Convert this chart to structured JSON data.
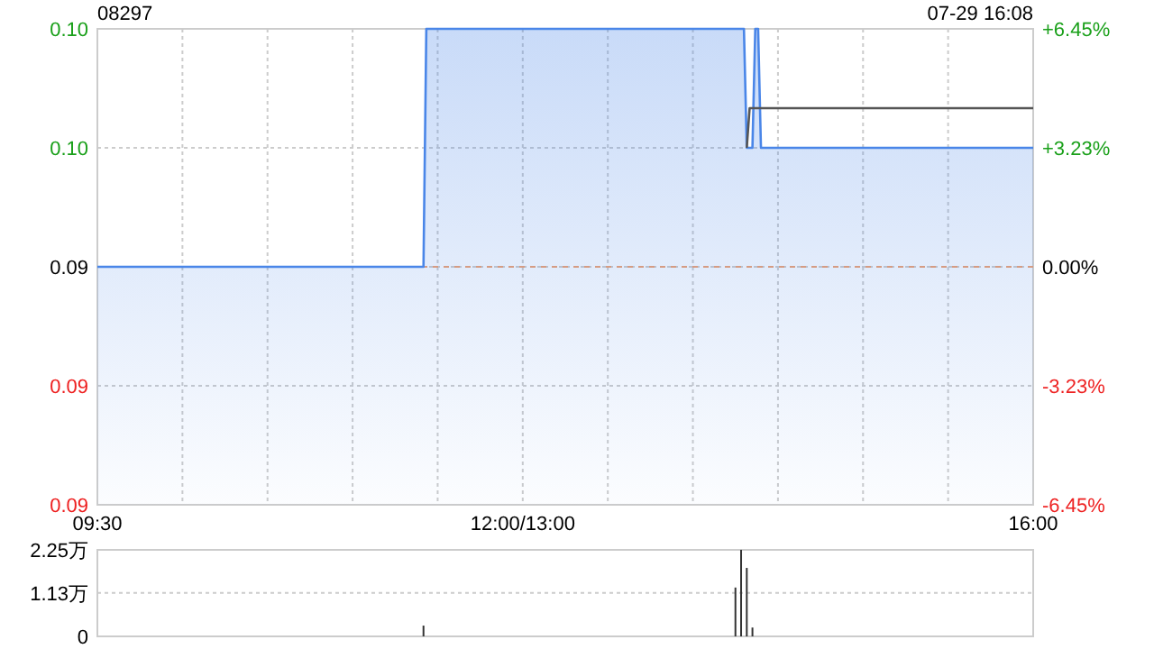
{
  "chart_data": [
    {
      "type": "line",
      "title": "08297",
      "annotations": [
        "07-29 16:08"
      ],
      "categories": [
        "09:30",
        null,
        null,
        null,
        null,
        null,
        null,
        null,
        null,
        null,
        null,
        null,
        null,
        null,
        null,
        null,
        null,
        null,
        null,
        null,
        null,
        null,
        null,
        null,
        null,
        null,
        null,
        null,
        null,
        null,
        null,
        null,
        null,
        null,
        null,
        null,
        null,
        null,
        null,
        null,
        null,
        null,
        null,
        null,
        null,
        null,
        null,
        null,
        null,
        null,
        null,
        null,
        null,
        null,
        null,
        null,
        null,
        null,
        null,
        null,
        null,
        null,
        null,
        null,
        null,
        null,
        null,
        null,
        null,
        null,
        null,
        null,
        null,
        null,
        null,
        null,
        null,
        null,
        null,
        null,
        null,
        null,
        null,
        null,
        null,
        null,
        null,
        null,
        null,
        null,
        null,
        null,
        null,
        null,
        null,
        null,
        null,
        null,
        null,
        null,
        null,
        null,
        null,
        null,
        null,
        null,
        null,
        null,
        null,
        null,
        null,
        null,
        null,
        null,
        null,
        null,
        null,
        null,
        null,
        null,
        null,
        null,
        null,
        null,
        null,
        null,
        null,
        null,
        null,
        null,
        null,
        null,
        null,
        null,
        null,
        null,
        null,
        null,
        null,
        null,
        null,
        null,
        null,
        null,
        null,
        null,
        null,
        null,
        null,
        null,
        "12:00/13:00",
        null,
        null,
        null,
        null,
        null,
        null,
        null,
        null,
        null,
        null,
        null,
        null,
        null,
        null,
        null,
        null,
        null,
        null,
        null,
        null,
        null,
        null,
        null,
        null,
        null,
        null,
        null,
        null,
        null,
        null,
        null,
        null,
        null,
        null,
        null,
        null,
        null,
        null,
        null,
        null,
        null,
        null,
        null,
        null,
        null,
        null,
        null,
        null,
        null,
        null,
        null,
        null,
        null,
        null,
        null,
        null,
        null,
        null,
        null,
        null,
        null,
        null,
        null,
        null,
        null,
        null,
        null,
        null,
        null,
        null,
        null,
        null,
        null,
        null,
        null,
        null,
        null,
        null,
        null,
        null,
        null,
        null,
        null,
        null,
        null,
        null,
        null,
        null,
        null,
        null,
        null,
        null,
        null,
        null,
        null,
        null,
        null,
        null,
        null,
        null,
        null,
        null,
        null,
        null,
        null,
        null,
        null,
        null,
        null,
        null,
        null,
        null,
        null,
        null,
        null,
        null,
        null,
        null,
        null,
        null,
        null,
        null,
        null,
        null,
        null,
        null,
        null,
        null,
        null,
        null,
        null,
        null,
        null,
        null,
        null,
        null,
        null,
        null,
        null,
        null,
        null,
        null,
        null,
        null,
        null,
        null,
        null,
        null,
        null,
        null,
        null,
        null,
        null,
        null,
        null,
        null,
        null,
        null,
        null,
        null,
        null,
        null,
        null,
        null,
        null,
        null,
        null,
        null,
        null,
        null,
        null,
        null,
        null,
        null,
        null,
        null,
        null,
        null,
        null,
        "16:00"
      ],
      "ylim": [
        0.087,
        0.099
      ],
      "yticks": [
        {
          "value": 0.087,
          "label": "0.09"
        },
        {
          "value": 0.09,
          "label": "0.09"
        },
        {
          "value": 0.093,
          "label": "0.09"
        },
        {
          "value": 0.096,
          "label": "0.10"
        },
        {
          "value": 0.099,
          "label": "0.10"
        }
      ],
      "y2lim": [
        -6.45,
        6.45
      ],
      "y2ticks": [
        {
          "value": -6.45,
          "label": "-6.45%"
        },
        {
          "value": -3.23,
          "label": "-3.23%"
        },
        {
          "value": 0,
          "label": "0.00%"
        },
        {
          "value": 3.23,
          "label": "+3.23%"
        },
        {
          "value": 6.45,
          "label": "+6.45%"
        }
      ],
      "grid": true,
      "ref_lines": [
        {
          "axis": "y",
          "value": 0.093,
          "color": "#f0a070",
          "line_style": "dashed"
        }
      ],
      "series": [
        {
          "type": "area",
          "color": "#4a86e8",
          "values": [
            0.093,
            0.093,
            0.093,
            0.093,
            0.093,
            0.093,
            0.093,
            0.093,
            0.093,
            0.093,
            0.093,
            0.093,
            0.093,
            0.093,
            0.093,
            0.093,
            0.093,
            0.093,
            0.093,
            0.093,
            0.093,
            0.093,
            0.093,
            0.093,
            0.093,
            0.093,
            0.093,
            0.093,
            0.093,
            0.093,
            0.093,
            0.093,
            0.093,
            0.093,
            0.093,
            0.093,
            0.093,
            0.093,
            0.093,
            0.093,
            0.093,
            0.093,
            0.093,
            0.093,
            0.093,
            0.093,
            0.093,
            0.093,
            0.093,
            0.093,
            0.093,
            0.093,
            0.093,
            0.093,
            0.093,
            0.093,
            0.093,
            0.093,
            0.093,
            0.093,
            0.093,
            0.093,
            0.093,
            0.093,
            0.093,
            0.093,
            0.093,
            0.093,
            0.093,
            0.093,
            0.093,
            0.093,
            0.093,
            0.093,
            0.093,
            0.093,
            0.093,
            0.093,
            0.093,
            0.093,
            0.093,
            0.093,
            0.093,
            0.093,
            0.093,
            0.093,
            0.093,
            0.093,
            0.093,
            0.093,
            0.093,
            0.093,
            0.093,
            0.093,
            0.093,
            0.093,
            0.093,
            0.093,
            0.093,
            0.093,
            0.093,
            0.093,
            0.093,
            0.093,
            0.093,
            0.093,
            0.093,
            0.093,
            0.093,
            0.093,
            0.093,
            0.093,
            0.093,
            0.093,
            0.093,
            0.093,
            0.099,
            0.099,
            0.099,
            0.099,
            0.099,
            0.099,
            0.099,
            0.099,
            0.099,
            0.099,
            0.099,
            0.099,
            0.099,
            0.099,
            0.099,
            0.099,
            0.099,
            0.099,
            0.099,
            0.099,
            0.099,
            0.099,
            0.099,
            0.099,
            0.099,
            0.099,
            0.099,
            0.099,
            0.099,
            0.099,
            0.099,
            0.099,
            0.099,
            0.099,
            0.099,
            0.099,
            0.099,
            0.099,
            0.099,
            0.099,
            0.099,
            0.099,
            0.099,
            0.099,
            0.099,
            0.099,
            0.099,
            0.099,
            0.099,
            0.099,
            0.099,
            0.099,
            0.099,
            0.099,
            0.099,
            0.099,
            0.099,
            0.099,
            0.099,
            0.099,
            0.099,
            0.099,
            0.099,
            0.099,
            0.099,
            0.099,
            0.099,
            0.099,
            0.099,
            0.099,
            0.099,
            0.099,
            0.099,
            0.099,
            0.099,
            0.099,
            0.099,
            0.099,
            0.099,
            0.099,
            0.099,
            0.099,
            0.099,
            0.099,
            0.099,
            0.099,
            0.099,
            0.099,
            0.099,
            0.099,
            0.099,
            0.099,
            0.099,
            0.099,
            0.099,
            0.099,
            0.099,
            0.099,
            0.099,
            0.099,
            0.099,
            0.099,
            0.099,
            0.099,
            0.099,
            0.099,
            0.099,
            0.099,
            0.099,
            0.099,
            0.099,
            0.099,
            0.099,
            0.096,
            0.096,
            0.096,
            0.099,
            0.099,
            0.096,
            0.096,
            0.096,
            0.096,
            0.096,
            0.096,
            0.096,
            0.096,
            0.096,
            0.096,
            0.096,
            0.096,
            0.096,
            0.096,
            0.096,
            0.096,
            0.096,
            0.096,
            0.096,
            0.096,
            0.096,
            0.096,
            0.096,
            0.096,
            0.096,
            0.096,
            0.096,
            0.096,
            0.096,
            0.096,
            0.096,
            0.096,
            0.096,
            0.096,
            0.096,
            0.096,
            0.096,
            0.096,
            0.096,
            0.096,
            0.096,
            0.096,
            0.096,
            0.096,
            0.096,
            0.096,
            0.096,
            0.096,
            0.096,
            0.096,
            0.096,
            0.096,
            0.096,
            0.096,
            0.096,
            0.096,
            0.096,
            0.096,
            0.096,
            0.096,
            0.096,
            0.096,
            0.096,
            0.096,
            0.096,
            0.096,
            0.096,
            0.096,
            0.096,
            0.096,
            0.096,
            0.096,
            0.096,
            0.096,
            0.096,
            0.096,
            0.096,
            0.096,
            0.096,
            0.096,
            0.096,
            0.096,
            0.096,
            0.096,
            0.096,
            0.096,
            0.096,
            0.096,
            0.096,
            0.096,
            0.096,
            0.096,
            0.096,
            0.096,
            0.096,
            0.096,
            0.096
          ]
        },
        {
          "type": "line",
          "color": "#555555",
          "values": [
            null,
            null,
            null,
            null,
            null,
            null,
            null,
            null,
            null,
            null,
            null,
            null,
            null,
            null,
            null,
            null,
            null,
            null,
            null,
            null,
            null,
            null,
            null,
            null,
            null,
            null,
            null,
            null,
            null,
            null,
            null,
            null,
            null,
            null,
            null,
            null,
            null,
            null,
            null,
            null,
            null,
            null,
            null,
            null,
            null,
            null,
            null,
            null,
            null,
            null,
            null,
            null,
            null,
            null,
            null,
            null,
            null,
            null,
            null,
            null,
            null,
            null,
            null,
            null,
            null,
            null,
            null,
            null,
            null,
            null,
            null,
            null,
            null,
            null,
            null,
            null,
            null,
            null,
            null,
            null,
            null,
            null,
            null,
            null,
            null,
            null,
            null,
            null,
            null,
            null,
            null,
            null,
            null,
            null,
            null,
            null,
            null,
            null,
            null,
            null,
            null,
            null,
            null,
            null,
            null,
            null,
            null,
            null,
            null,
            null,
            null,
            null,
            null,
            null,
            null,
            null,
            null,
            null,
            null,
            null,
            null,
            null,
            null,
            null,
            null,
            null,
            null,
            null,
            null,
            null,
            null,
            null,
            null,
            null,
            null,
            null,
            null,
            null,
            null,
            null,
            null,
            null,
            null,
            null,
            null,
            null,
            null,
            null,
            null,
            null,
            null,
            null,
            null,
            null,
            null,
            null,
            null,
            null,
            null,
            null,
            null,
            null,
            null,
            null,
            null,
            null,
            null,
            null,
            null,
            null,
            null,
            null,
            null,
            null,
            null,
            null,
            null,
            null,
            null,
            null,
            null,
            null,
            null,
            null,
            null,
            null,
            null,
            null,
            null,
            null,
            null,
            null,
            null,
            null,
            null,
            null,
            null,
            null,
            null,
            null,
            null,
            null,
            null,
            null,
            null,
            null,
            null,
            null,
            null,
            null,
            null,
            null,
            null,
            null,
            null,
            null,
            null,
            null,
            null,
            null,
            null,
            null,
            null,
            null,
            null,
            null,
            null,
            null,
            null,
            0.096,
            0.097,
            0.097,
            0.097,
            0.097,
            0.097,
            0.097,
            0.097,
            0.097,
            0.097,
            0.097,
            0.097,
            0.097,
            0.097,
            0.097,
            0.097,
            0.097,
            0.097,
            0.097,
            0.097,
            0.097,
            0.097,
            0.097,
            0.097,
            0.097,
            0.097,
            0.097,
            0.097,
            0.097,
            0.097,
            0.097,
            0.097,
            0.097,
            0.097,
            0.097,
            0.097,
            0.097,
            0.097,
            0.097,
            0.097,
            0.097,
            0.097,
            0.097,
            0.097,
            0.097,
            0.097,
            0.097,
            0.097,
            0.097,
            0.097,
            0.097,
            0.097,
            0.097,
            0.097,
            0.097,
            0.097,
            0.097,
            0.097,
            0.097,
            0.097,
            0.097,
            0.097,
            0.097,
            0.097,
            0.097,
            0.097,
            0.097,
            0.097,
            0.097,
            0.097,
            0.097,
            0.097,
            0.097,
            0.097,
            0.097,
            0.097,
            0.097,
            0.097,
            0.097,
            0.097,
            0.097,
            0.097,
            0.097,
            0.097,
            0.097,
            0.097,
            0.097,
            0.097,
            0.097,
            0.097,
            0.097,
            0.097,
            0.097,
            0.097,
            0.097,
            0.097,
            0.097,
            0.097,
            0.097,
            0.097,
            0.097,
            0.097
          ]
        }
      ]
    },
    {
      "type": "bar",
      "tick_labels": "y",
      "categories": [
        null,
        null,
        null,
        null,
        null,
        null,
        null,
        null,
        null,
        null,
        null,
        null,
        null,
        null,
        null,
        null,
        null,
        null,
        null,
        null,
        null,
        null,
        null,
        null,
        null,
        null,
        null,
        null,
        null,
        null,
        null,
        null,
        null,
        null,
        null,
        null,
        null,
        null,
        null,
        null,
        null,
        null,
        null,
        null,
        null,
        null,
        null,
        null,
        null,
        null,
        null,
        null,
        null,
        null,
        null,
        null,
        null,
        null,
        null,
        null,
        null,
        null,
        null,
        null,
        null,
        null,
        null,
        null,
        null,
        null,
        null,
        null,
        null,
        null,
        null,
        null,
        null,
        null,
        null,
        null,
        null,
        null,
        null,
        null,
        null,
        null,
        null,
        null,
        null,
        null,
        null,
        null,
        null,
        null,
        null,
        null,
        null,
        null,
        null,
        null,
        null,
        null,
        null,
        null,
        null,
        null,
        null,
        null,
        null,
        null,
        null,
        null,
        null,
        null,
        null,
        null,
        null,
        null,
        null,
        null,
        null,
        null,
        null,
        null,
        null,
        null,
        null,
        null,
        null,
        null,
        null,
        null,
        null,
        null,
        null,
        null,
        null,
        null,
        null,
        null,
        null,
        null,
        null,
        null,
        null,
        null,
        null,
        null,
        null,
        null,
        null,
        null,
        null,
        null,
        null,
        null,
        null,
        null,
        null,
        null,
        null,
        null,
        null,
        null,
        null,
        null,
        null,
        null,
        null,
        null,
        null,
        null,
        null,
        null,
        null,
        null,
        null,
        null,
        null,
        null,
        null,
        null,
        null,
        null,
        null,
        null,
        null,
        null,
        null,
        null,
        null,
        null,
        null,
        null,
        null,
        null,
        null,
        null,
        null,
        null,
        null,
        null,
        null,
        null,
        null,
        null,
        null,
        null,
        null,
        null,
        null,
        null,
        null,
        null,
        null,
        null,
        null,
        null,
        null,
        null,
        null,
        null,
        null,
        null,
        null,
        null,
        null,
        null,
        null,
        null,
        null,
        null,
        null,
        null,
        null,
        null,
        null,
        null,
        null,
        null,
        null,
        null,
        null,
        null,
        null,
        null,
        null,
        null,
        null,
        null,
        null,
        null,
        null,
        null,
        null,
        null,
        null,
        null,
        null,
        null,
        null,
        null,
        null,
        null,
        null,
        null,
        null,
        null,
        null,
        null,
        null,
        null,
        null,
        null,
        null,
        null,
        null,
        null,
        null,
        null,
        null,
        null,
        null,
        null,
        null,
        null,
        null,
        null,
        null,
        null,
        null,
        null,
        null,
        null,
        null,
        null,
        null,
        null,
        null,
        null,
        null,
        null,
        null,
        null,
        null,
        null,
        null,
        null,
        null,
        null,
        null,
        null,
        null,
        null,
        null,
        null,
        null,
        null,
        null,
        null,
        null,
        null,
        null,
        null,
        null,
        null,
        null,
        null,
        null,
        null,
        null
      ],
      "ylim": [
        0,
        2.25
      ],
      "yticks": [
        0,
        {
          "value": 1.13,
          "label": "1.13万"
        },
        {
          "value": 2.25,
          "label": "2.25万"
        }
      ],
      "grid": "y",
      "color": "#333333",
      "values": [
        null,
        null,
        null,
        null,
        null,
        null,
        null,
        null,
        null,
        null,
        null,
        null,
        null,
        null,
        null,
        null,
        null,
        null,
        null,
        null,
        null,
        null,
        null,
        null,
        null,
        null,
        null,
        null,
        null,
        null,
        null,
        null,
        null,
        null,
        null,
        null,
        null,
        null,
        null,
        null,
        null,
        null,
        null,
        null,
        null,
        null,
        null,
        null,
        null,
        null,
        null,
        null,
        null,
        null,
        null,
        null,
        null,
        null,
        null,
        null,
        null,
        null,
        null,
        null,
        null,
        null,
        null,
        null,
        null,
        null,
        null,
        null,
        null,
        null,
        null,
        null,
        null,
        null,
        null,
        null,
        null,
        null,
        null,
        null,
        null,
        null,
        null,
        null,
        null,
        null,
        null,
        null,
        null,
        null,
        null,
        null,
        null,
        null,
        null,
        null,
        null,
        null,
        null,
        null,
        null,
        null,
        null,
        null,
        null,
        null,
        null,
        null,
        null,
        null,
        null,
        0.28,
        null,
        null,
        null,
        null,
        null,
        null,
        null,
        null,
        null,
        null,
        null,
        null,
        null,
        null,
        null,
        null,
        null,
        null,
        null,
        null,
        null,
        null,
        null,
        null,
        null,
        null,
        null,
        null,
        null,
        null,
        null,
        null,
        null,
        null,
        null,
        null,
        null,
        null,
        null,
        null,
        null,
        null,
        null,
        null,
        null,
        null,
        null,
        null,
        null,
        null,
        null,
        null,
        null,
        null,
        null,
        null,
        null,
        null,
        null,
        null,
        null,
        null,
        null,
        null,
        null,
        null,
        null,
        null,
        null,
        null,
        null,
        null,
        null,
        null,
        null,
        null,
        null,
        null,
        null,
        null,
        null,
        null,
        null,
        null,
        null,
        null,
        null,
        null,
        null,
        null,
        null,
        null,
        null,
        null,
        null,
        null,
        null,
        null,
        null,
        null,
        null,
        null,
        null,
        null,
        null,
        null,
        null,
        null,
        null,
        1.27,
        null,
        2.25,
        null,
        1.78,
        null,
        0.23,
        null,
        null,
        null,
        null,
        null,
        null,
        null,
        null,
        null,
        null,
        null,
        null,
        null,
        null,
        null,
        null,
        null,
        null,
        null,
        null,
        null,
        null,
        null,
        null,
        null,
        null,
        null,
        null,
        null,
        null,
        null,
        null,
        null,
        null,
        null,
        null,
        null,
        null,
        null,
        null,
        null,
        null,
        null,
        null,
        null,
        null,
        null,
        null,
        null,
        null,
        null,
        null,
        null,
        null,
        null,
        null,
        null,
        null,
        null,
        null,
        null,
        null,
        null,
        null,
        null,
        null,
        null,
        null,
        null,
        null,
        null,
        null,
        null,
        null,
        null,
        null,
        null,
        null,
        null,
        null,
        null,
        null,
        null,
        null,
        null,
        null,
        null,
        null,
        null,
        null,
        null,
        null,
        null,
        null,
        null,
        null,
        null,
        null,
        null
      ]
    }
  ]
}
